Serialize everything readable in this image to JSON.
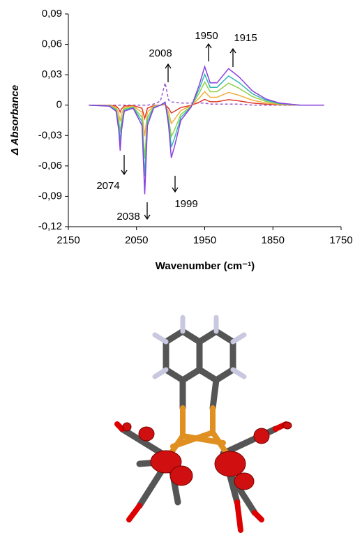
{
  "chart_data": {
    "type": "line",
    "y_label": "Δ Absorbance",
    "x_label": "Wavenumber (cm⁻¹)",
    "xlim": [
      2150,
      1750
    ],
    "xticks": [
      2150,
      2050,
      1950,
      1850,
      1750
    ],
    "ylim": [
      -0.12,
      0.09
    ],
    "yticks": [
      {
        "value": -0.12,
        "label": "-0,12"
      },
      {
        "value": -0.09,
        "label": "-0,09"
      },
      {
        "value": -0.06,
        "label": "-0,06"
      },
      {
        "value": -0.03,
        "label": "-0,03"
      },
      0,
      {
        "value": 0.03,
        "label": "0,03"
      },
      {
        "value": 0.06,
        "label": "0,06"
      },
      {
        "value": 0.09,
        "label": "0,09"
      }
    ],
    "grid": false,
    "x": [
      2120,
      2090,
      2080,
      2076,
      2074,
      2072,
      2068,
      2055,
      2042,
      2038,
      2034,
      2025,
      2015,
      2008,
      2003,
      1999,
      1994,
      1985,
      1970,
      1958,
      1950,
      1942,
      1932,
      1915,
      1900,
      1880,
      1860,
      1840,
      1810,
      1775
    ],
    "series": [
      {
        "color": "#9b59d0",
        "line_style": "dashed",
        "values": [
          0,
          0,
          0,
          0,
          0,
          0,
          0,
          0,
          0,
          0,
          0,
          0.001,
          0.004,
          0.022,
          0.005,
          0.003,
          0.003,
          0.002,
          0.002,
          0.002,
          0.002,
          0.001,
          0.001,
          0.001,
          0.001,
          0,
          0,
          0,
          0,
          0
        ]
      },
      {
        "color": "#e03a2e",
        "line_style": "solid",
        "values": [
          0,
          -0.0002,
          -0.0009,
          -0.0038,
          -0.0068,
          -0.0038,
          -0.0009,
          -0.0005,
          -0.003,
          -0.0132,
          -0.003,
          -0.0005,
          0,
          0.0005,
          -0.003,
          -0.0078,
          -0.006,
          -0.0023,
          -0.0003,
          0.003,
          0.0057,
          0.0033,
          0.0033,
          0.0054,
          0.0042,
          0.0021,
          0.0009,
          0.0003,
          0,
          0
        ]
      },
      {
        "color": "#f0b040",
        "line_style": "solid",
        "values": [
          0,
          -0.0004,
          -0.0021,
          -0.0088,
          -0.0158,
          -0.0088,
          -0.0021,
          -0.0011,
          -0.007,
          -0.0308,
          -0.007,
          -0.0011,
          0,
          0.0011,
          -0.007,
          -0.0182,
          -0.014,
          -0.0053,
          -0.0007,
          0.007,
          0.0133,
          0.0077,
          0.0077,
          0.0126,
          0.0098,
          0.0049,
          0.0021,
          0.0007,
          0,
          0
        ]
      },
      {
        "color": "#8fd04a",
        "line_style": "solid",
        "values": [
          0,
          -0.0006,
          -0.0036,
          -0.015,
          -0.027,
          -0.015,
          -0.0036,
          -0.0018,
          -0.012,
          -0.0528,
          -0.012,
          -0.0018,
          0,
          0.0018,
          -0.012,
          -0.0312,
          -0.024,
          -0.009,
          -0.0012,
          0.012,
          0.0228,
          0.0132,
          0.0132,
          0.0216,
          0.0168,
          0.0084,
          0.0036,
          0.0012,
          0,
          0
        ]
      },
      {
        "color": "#2fb8b0",
        "line_style": "solid",
        "values": [
          0,
          -0.0008,
          -0.0048,
          -0.02,
          -0.036,
          -0.02,
          -0.0048,
          -0.0024,
          -0.016,
          -0.0704,
          -0.016,
          -0.0024,
          0,
          0.0024,
          -0.016,
          -0.0416,
          -0.032,
          -0.012,
          -0.0016,
          0.016,
          0.0304,
          0.0176,
          0.0176,
          0.0288,
          0.0224,
          0.0112,
          0.0048,
          0.0016,
          0,
          0
        ]
      },
      {
        "color": "#8a3fe0",
        "line_style": "solid",
        "values": [
          0,
          -0.001,
          -0.006,
          -0.025,
          -0.045,
          -0.025,
          -0.006,
          -0.003,
          -0.02,
          -0.088,
          -0.02,
          -0.003,
          0,
          0.003,
          -0.02,
          -0.052,
          -0.04,
          -0.015,
          -0.002,
          0.02,
          0.038,
          0.022,
          0.022,
          0.036,
          0.028,
          0.014,
          0.006,
          0.002,
          0,
          0
        ]
      }
    ],
    "annotations": [
      "2074",
      "2038",
      "1999",
      "2008",
      "1950",
      "1915"
    ]
  }
}
